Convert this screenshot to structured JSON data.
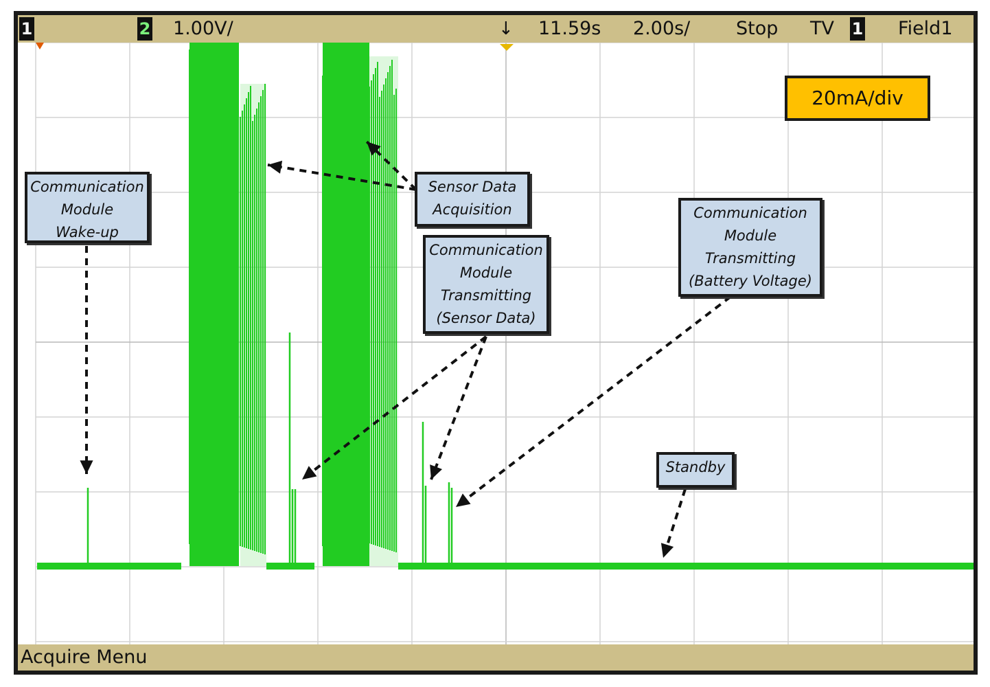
{
  "status_bar": {
    "channel_1": "1",
    "channel_2": "2",
    "volts_per_div": "1.00V/",
    "delay": "11.59s",
    "time_per_div": "2.00s/",
    "run_state": "Stop",
    "trigger_mode": "TV",
    "trigger_source": "1",
    "trigger_field": "Field1"
  },
  "scale_label": "20mA/div",
  "annotations": {
    "wakeup": [
      "Communication",
      "Module",
      "Wake-up"
    ],
    "sensor_acq": [
      "Sensor Data",
      "Acquisition"
    ],
    "tx_sensor": [
      "Communication",
      "Module",
      "Transmitting",
      "(Sensor Data)"
    ],
    "tx_battery": [
      "Communication",
      "Module",
      "Transmitting",
      "(Battery Voltage)"
    ],
    "standby": [
      "Standby"
    ]
  },
  "bottom_bar": {
    "menu_label": "Acquire Menu"
  },
  "colors": {
    "trace": "#22cc22",
    "bezel": "#cdbf8a",
    "scale_box": "#ffc000",
    "annotation_fill": "#c9d9ea"
  }
}
